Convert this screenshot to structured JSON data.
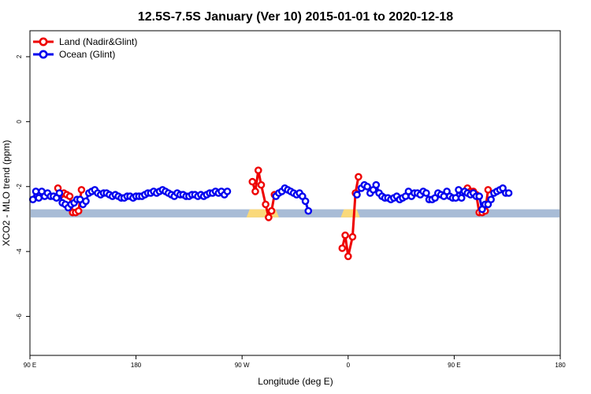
{
  "chart_data": {
    "type": "line",
    "title": "12.5S-7.5S January (Ver 10)   2015-01-01 to 2020-12-18",
    "xlabel": "Longitude (deg E)",
    "ylabel": "XCO2 - MLO trend (ppm)",
    "xlim": [
      90,
      450
    ],
    "ylim": [
      -7.2,
      2.8
    ],
    "x_ticks": [
      {
        "value": 90,
        "label": "90 E"
      },
      {
        "value": 162,
        "label": "180"
      },
      {
        "value": 234,
        "label": "90 W"
      },
      {
        "value": 306,
        "label": "0"
      },
      {
        "value": 378,
        "label": "90 E"
      },
      {
        "value": 450,
        "label": "180"
      }
    ],
    "y_ticks": [
      {
        "value": 2,
        "label": "2"
      },
      {
        "value": 0,
        "label": "0"
      },
      {
        "value": -2,
        "label": "-2"
      },
      {
        "value": -4,
        "label": "-4"
      },
      {
        "value": -6,
        "label": "-6"
      }
    ],
    "legend": {
      "position": "top-left"
    },
    "colors": {
      "land": "#ee0000",
      "ocean": "#0000ee",
      "land_band": "#fad97a",
      "ocean_band": "#a8bcd6"
    },
    "series": [
      {
        "name": "Land (Nadir&Glint)",
        "color": "#ee0000",
        "segments": [
          [
            [
              109,
              -2.05
            ],
            [
              111,
              -2.25
            ],
            [
              113,
              -2.2
            ],
            [
              115,
              -2.25
            ],
            [
              117,
              -2.3
            ],
            [
              119,
              -2.8
            ],
            [
              121,
              -2.8
            ],
            [
              123,
              -2.75
            ],
            [
              125,
              -2.1
            ]
          ],
          [
            [
              241,
              -1.85
            ],
            [
              243,
              -2.15
            ],
            [
              245,
              -1.5
            ],
            [
              247,
              -1.95
            ],
            [
              250,
              -2.55
            ],
            [
              252,
              -2.95
            ],
            [
              254,
              -2.75
            ],
            [
              256,
              -2.25
            ]
          ],
          [
            [
              302,
              -3.9
            ],
            [
              304,
              -3.5
            ],
            [
              306,
              -4.15
            ],
            [
              309,
              -3.55
            ],
            [
              311,
              -2.2
            ],
            [
              313,
              -1.7
            ]
          ],
          [
            [
              387,
              -2.05
            ],
            [
              389,
              -2.15
            ],
            [
              391,
              -2.15
            ],
            [
              393,
              -2.25
            ],
            [
              395,
              -2.8
            ],
            [
              397,
              -2.8
            ],
            [
              399,
              -2.75
            ],
            [
              401,
              -2.1
            ]
          ]
        ]
      },
      {
        "name": "Ocean (Glint)",
        "color": "#0000ee",
        "segments": [
          [
            [
              92,
              -2.4
            ],
            [
              94,
              -2.15
            ],
            [
              96,
              -2.35
            ],
            [
              98,
              -2.15
            ],
            [
              100,
              -2.3
            ],
            [
              102,
              -2.2
            ],
            [
              104,
              -2.3
            ],
            [
              106,
              -2.3
            ],
            [
              108,
              -2.35
            ],
            [
              110,
              -2.2
            ],
            [
              112,
              -2.5
            ],
            [
              114,
              -2.55
            ],
            [
              116,
              -2.65
            ],
            [
              118,
              -2.55
            ],
            [
              120,
              -2.5
            ],
            [
              122,
              -2.4
            ],
            [
              124,
              -2.4
            ],
            [
              126,
              -2.55
            ],
            [
              128,
              -2.45
            ],
            [
              130,
              -2.2
            ],
            [
              132,
              -2.15
            ],
            [
              134,
              -2.1
            ],
            [
              136,
              -2.2
            ],
            [
              138,
              -2.25
            ],
            [
              140,
              -2.2
            ],
            [
              142,
              -2.2
            ],
            [
              144,
              -2.25
            ],
            [
              146,
              -2.3
            ],
            [
              148,
              -2.25
            ],
            [
              150,
              -2.3
            ],
            [
              152,
              -2.35
            ],
            [
              154,
              -2.35
            ],
            [
              156,
              -2.3
            ],
            [
              158,
              -2.3
            ],
            [
              160,
              -2.35
            ],
            [
              162,
              -2.3
            ],
            [
              164,
              -2.3
            ],
            [
              166,
              -2.3
            ],
            [
              168,
              -2.25
            ],
            [
              170,
              -2.2
            ],
            [
              172,
              -2.2
            ],
            [
              174,
              -2.15
            ],
            [
              176,
              -2.2
            ],
            [
              178,
              -2.15
            ],
            [
              180,
              -2.1
            ],
            [
              182,
              -2.15
            ],
            [
              184,
              -2.2
            ],
            [
              186,
              -2.25
            ],
            [
              188,
              -2.3
            ],
            [
              190,
              -2.2
            ],
            [
              192,
              -2.25
            ],
            [
              194,
              -2.25
            ],
            [
              196,
              -2.3
            ],
            [
              198,
              -2.3
            ],
            [
              200,
              -2.25
            ],
            [
              202,
              -2.25
            ],
            [
              204,
              -2.3
            ],
            [
              206,
              -2.25
            ],
            [
              208,
              -2.3
            ],
            [
              210,
              -2.25
            ],
            [
              212,
              -2.2
            ],
            [
              214,
              -2.2
            ],
            [
              216,
              -2.15
            ],
            [
              218,
              -2.2
            ],
            [
              220,
              -2.15
            ],
            [
              222,
              -2.25
            ],
            [
              224,
              -2.15
            ]
          ],
          [
            [
              257,
              -2.3
            ],
            [
              259,
              -2.2
            ],
            [
              261,
              -2.15
            ],
            [
              263,
              -2.05
            ],
            [
              265,
              -2.1
            ],
            [
              267,
              -2.15
            ],
            [
              269,
              -2.2
            ],
            [
              271,
              -2.25
            ],
            [
              273,
              -2.2
            ],
            [
              275,
              -2.3
            ],
            [
              277,
              -2.45
            ],
            [
              279,
              -2.75
            ]
          ],
          [
            [
              312,
              -2.25
            ],
            [
              315,
              -2.05
            ],
            [
              317,
              -1.95
            ],
            [
              319,
              -2.0
            ],
            [
              321,
              -2.2
            ],
            [
              323,
              -2.1
            ],
            [
              325,
              -1.95
            ],
            [
              327,
              -2.2
            ],
            [
              329,
              -2.3
            ],
            [
              331,
              -2.35
            ],
            [
              333,
              -2.35
            ],
            [
              335,
              -2.4
            ],
            [
              337,
              -2.35
            ],
            [
              339,
              -2.3
            ],
            [
              341,
              -2.4
            ],
            [
              343,
              -2.35
            ],
            [
              345,
              -2.3
            ],
            [
              347,
              -2.15
            ],
            [
              349,
              -2.3
            ],
            [
              351,
              -2.2
            ],
            [
              353,
              -2.2
            ],
            [
              355,
              -2.25
            ],
            [
              357,
              -2.15
            ],
            [
              359,
              -2.2
            ],
            [
              361,
              -2.4
            ],
            [
              363,
              -2.4
            ],
            [
              365,
              -2.35
            ],
            [
              367,
              -2.2
            ],
            [
              369,
              -2.25
            ],
            [
              371,
              -2.3
            ],
            [
              373,
              -2.15
            ],
            [
              375,
              -2.3
            ],
            [
              377,
              -2.35
            ],
            [
              379,
              -2.35
            ],
            [
              381,
              -2.1
            ],
            [
              383,
              -2.35
            ],
            [
              385,
              -2.15
            ],
            [
              387,
              -2.2
            ],
            [
              389,
              -2.25
            ],
            [
              391,
              -2.2
            ],
            [
              393,
              -2.3
            ],
            [
              395,
              -2.3
            ],
            [
              397,
              -2.7
            ],
            [
              399,
              -2.55
            ],
            [
              401,
              -2.55
            ],
            [
              403,
              -2.4
            ],
            [
              405,
              -2.2
            ],
            [
              407,
              -2.15
            ],
            [
              409,
              -2.1
            ],
            [
              411,
              -2.05
            ],
            [
              413,
              -2.2
            ],
            [
              415,
              -2.2
            ]
          ]
        ]
      }
    ],
    "bands": {
      "ymin": -2.95,
      "ymax": -2.7,
      "land_ranges": [
        [
          237,
          259
        ],
        [
          301,
          314
        ]
      ]
    }
  }
}
